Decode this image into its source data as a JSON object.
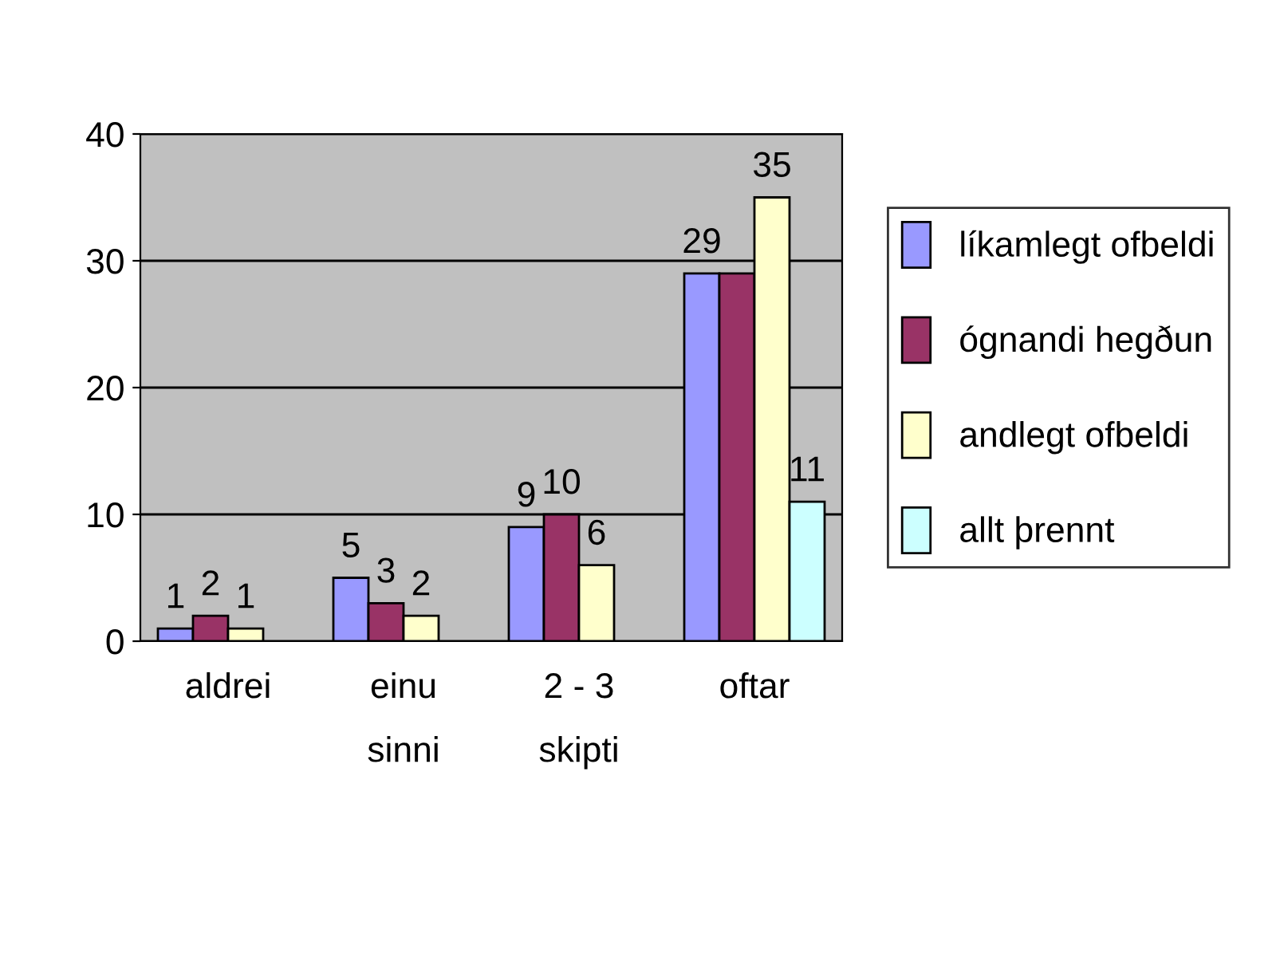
{
  "chart_data": {
    "type": "bar",
    "categories": [
      "aldrei",
      "einu\nsinni",
      "2 - 3\nskipti",
      "oftar"
    ],
    "series": [
      {
        "name": "líkamlegt ofbeldi",
        "color": "#9999ff",
        "values": [
          1,
          5,
          9,
          29
        ],
        "value_labels": [
          "1",
          "5",
          "9",
          "29"
        ]
      },
      {
        "name": "ógnandi hegðun",
        "color": "#993366",
        "values": [
          2,
          3,
          10,
          29
        ],
        "value_labels": [
          "2",
          "3",
          "10",
          null
        ]
      },
      {
        "name": "andlegt ofbeldi",
        "color": "#ffffcc",
        "values": [
          1,
          2,
          6,
          35
        ],
        "value_labels": [
          "1",
          "2",
          "6",
          "35"
        ]
      },
      {
        "name": "allt þrennt",
        "color": "#ccffff",
        "values": [
          null,
          null,
          null,
          11
        ],
        "value_labels": [
          null,
          null,
          null,
          "11"
        ]
      }
    ],
    "ylim": [
      0,
      40
    ],
    "yticks": [
      0,
      10,
      20,
      30,
      40
    ],
    "grid": "y",
    "legend": "right"
  }
}
